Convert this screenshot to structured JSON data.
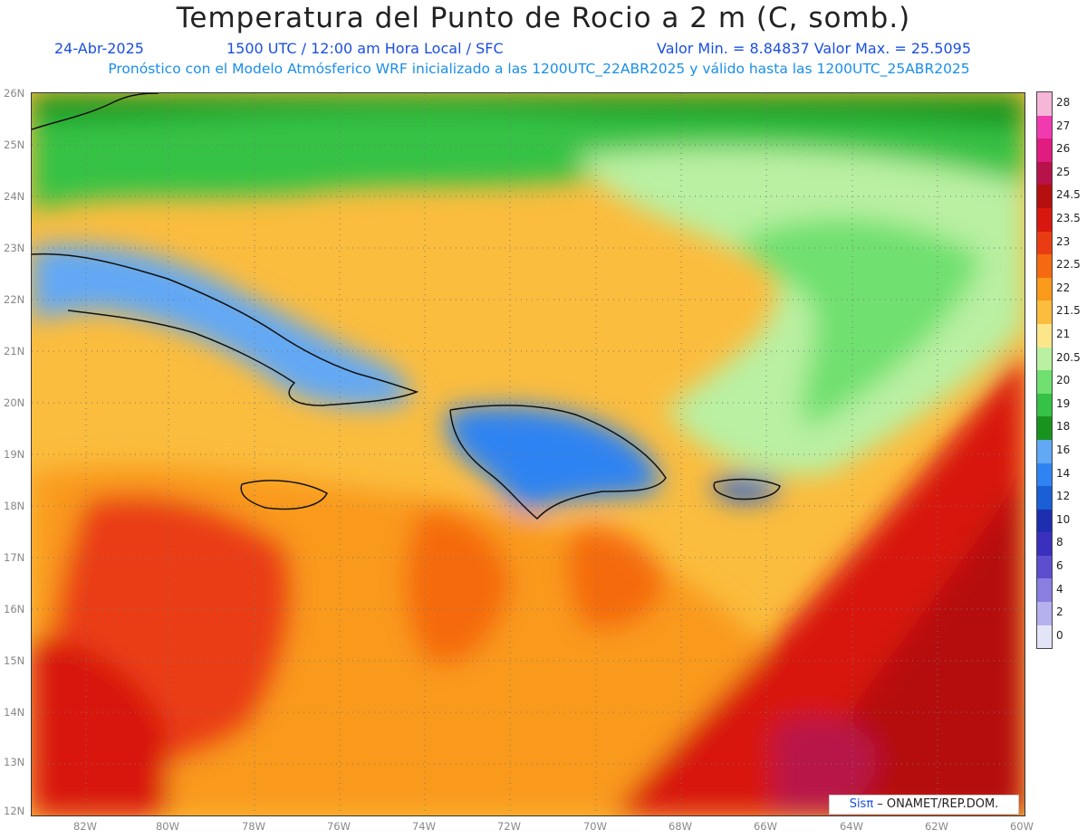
{
  "header": {
    "title": "Temperatura del Punto de Rocio a 2 m (C, somb.)",
    "date": "24-Abr-2025",
    "time": "1500 UTC / 12:00 am Hora Local / SFC",
    "minmax": "Valor Min. = 8.84837   Valor Max. = 25.5095",
    "model_line": "Pronóstico con el Modelo Atmósferico WRF inicializado a las 1200UTC_22ABR2025 y válido hasta las  1200UTC_25ABR2025"
  },
  "axes": {
    "lat_labels": [
      "26N",
      "25N",
      "24N",
      "23N",
      "22N",
      "21N",
      "20N",
      "19N",
      "18N",
      "17N",
      "16N",
      "15N",
      "14N",
      "13N",
      "12N"
    ],
    "lon_labels": [
      "82W",
      "80W",
      "78W",
      "76W",
      "74W",
      "72W",
      "70W",
      "68W",
      "66W",
      "64W",
      "62W",
      "60W"
    ]
  },
  "colorbar": {
    "labels": [
      "28",
      "27",
      "26",
      "25",
      "24.5",
      "23.5",
      "23",
      "22.5",
      "22",
      "21.5",
      "21",
      "20.5",
      "20",
      "19",
      "18",
      "16",
      "14",
      "12",
      "10",
      "8",
      "6",
      "4",
      "2",
      "0"
    ],
    "colors": [
      "#f5b6d8",
      "#f23ab0",
      "#e01c80",
      "#b8124a",
      "#b50f0f",
      "#d8180e",
      "#ea3c12",
      "#f56a10",
      "#f99a1a",
      "#fbbd3e",
      "#fde68a",
      "#b9f0a2",
      "#6fe070",
      "#35c245",
      "#18941e",
      "#62a8f5",
      "#2f83f2",
      "#1a5fd6",
      "#1d2fb0",
      "#3a30bd",
      "#5d4ed0",
      "#8a7ee0",
      "#b5b0ee",
      "#e4e4f8"
    ]
  },
  "footer": {
    "logo_brand": "Sisπ",
    "logo_text": " – ONAMET/REP.DOM."
  }
}
